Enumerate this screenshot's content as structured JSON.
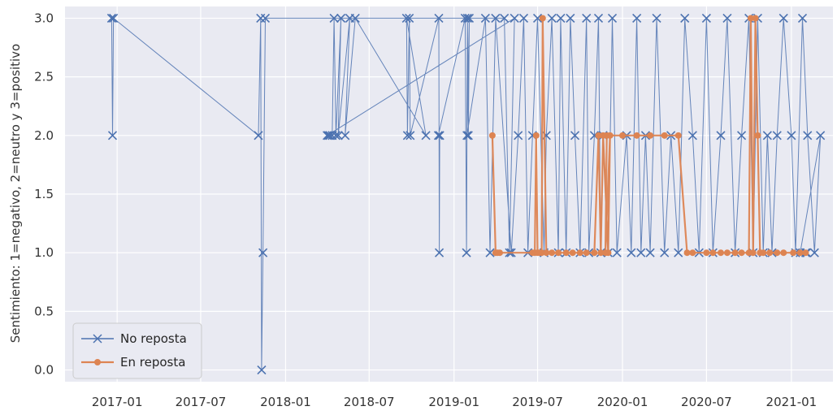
{
  "chart_data": {
    "type": "line",
    "title": "",
    "xlabel": "",
    "ylabel": "Sentimiento: 1=negativo, 2=neutro y 3=positivo",
    "ylim": [
      -0.1,
      3.1
    ],
    "xlim": [
      "2016-09-10",
      "2021-04-01"
    ],
    "grid": true,
    "legend_position": "lower left",
    "x_ticks": [
      "2017-01-01",
      "2017-07-01",
      "2018-01-01",
      "2018-07-01",
      "2019-01-01",
      "2019-07-01",
      "2020-01-01",
      "2020-07-01",
      "2021-01-01"
    ],
    "x_tick_labels": [
      "2017-01",
      "2017-07",
      "2018-01",
      "2018-07",
      "2019-01",
      "2019-07",
      "2020-01",
      "2020-07",
      "2021-01"
    ],
    "y_ticks": [
      0.0,
      0.5,
      1.0,
      1.5,
      2.0,
      2.5,
      3.0
    ],
    "y_tick_labels": [
      "0.0",
      "0.5",
      "1.0",
      "1.5",
      "2.0",
      "2.5",
      "3.0"
    ],
    "colors": {
      "background": "#e9eaf2",
      "grid": "#ffffff",
      "no_reposta": "#4c72b0",
      "en_reposta": "#dd8452"
    },
    "series": [
      {
        "name": "No reposta",
        "color": "#4c72b0",
        "marker": "x",
        "x": [
          "2016-12-20",
          "2016-12-22",
          "2016-12-24",
          "2017-11-03",
          "2017-11-08",
          "2017-11-10",
          "2017-11-13",
          "2017-11-18",
          "2019-04-20",
          "2019-05-01",
          "2019-05-12",
          "2018-04-01",
          "2018-04-04",
          "2018-04-07",
          "2018-04-12",
          "2018-04-16",
          "2018-04-20",
          "2018-05-01",
          "2018-04-25",
          "2018-05-20",
          "2018-05-10",
          "2018-06-01",
          "2018-11-01",
          "2018-09-20",
          "2018-09-22",
          "2018-09-26",
          "2018-09-28",
          "2018-11-29",
          "2018-11-30",
          "2018-12-01",
          "2018-11-28",
          "2019-01-25",
          "2019-01-28",
          "2019-01-30",
          "2019-02-01",
          "2019-02-03",
          "2019-01-29",
          "2019-03-10",
          "2019-03-20",
          "2019-04-01",
          "2019-05-05",
          "2019-05-20",
          "2019-06-01",
          "2019-06-10",
          "2019-06-20",
          "2019-07-01",
          "2019-07-15",
          "2019-07-20",
          "2019-08-01",
          "2019-08-15",
          "2019-08-20",
          "2019-09-01",
          "2019-09-10",
          "2019-09-20",
          "2019-10-01",
          "2019-10-15",
          "2019-10-20",
          "2019-11-01",
          "2019-11-10",
          "2019-11-15",
          "2019-11-20",
          "2019-12-01",
          "2019-12-10",
          "2019-12-20",
          "2020-01-10",
          "2020-01-20",
          "2020-02-01",
          "2020-02-10",
          "2020-02-20",
          "2020-03-01",
          "2020-03-15",
          "2020-04-01",
          "2020-04-15",
          "2020-05-01",
          "2020-05-15",
          "2020-06-01",
          "2020-06-15",
          "2020-07-01",
          "2020-07-15",
          "2020-08-01",
          "2020-08-15",
          "2020-09-01",
          "2020-09-15",
          "2020-10-01",
          "2020-10-10",
          "2020-10-20",
          "2020-11-01",
          "2020-11-10",
          "2020-11-20",
          "2020-12-01",
          "2020-12-15",
          "2021-01-01",
          "2021-01-10",
          "2021-01-25",
          "2021-02-05",
          "2021-02-20",
          "2021-03-05",
          "2021-01-20",
          "2021-02-01",
          "2021-02-03"
        ],
        "values": [
          3,
          2,
          3,
          2,
          3,
          0,
          1,
          3,
          3,
          1,
          3,
          2,
          2,
          2,
          2,
          3,
          2,
          3,
          2,
          3,
          2,
          3,
          2,
          3,
          2,
          3,
          2,
          3,
          1,
          2,
          2,
          3,
          1,
          3,
          2,
          3,
          2,
          3,
          1,
          3,
          1,
          2,
          3,
          1,
          2,
          3,
          1,
          2,
          3,
          1,
          3,
          1,
          3,
          2,
          1,
          3,
          1,
          2,
          3,
          1,
          2,
          1,
          3,
          1,
          2,
          1,
          3,
          1,
          2,
          1,
          3,
          1,
          2,
          1,
          3,
          2,
          1,
          3,
          1,
          2,
          3,
          1,
          2,
          3,
          1,
          3,
          1,
          2,
          1,
          2,
          3,
          2,
          1,
          3,
          2,
          1,
          2,
          1,
          1,
          1
        ]
      },
      {
        "name": "En reposta",
        "color": "#dd8452",
        "marker": "o",
        "x": [
          "2019-03-25",
          "2019-04-01",
          "2019-04-05",
          "2019-04-10",
          "2019-06-20",
          "2019-06-25",
          "2019-06-28",
          "2019-07-01",
          "2019-07-05",
          "2019-07-10",
          "2019-07-12",
          "2019-07-20",
          "2019-08-01",
          "2019-08-15",
          "2019-09-01",
          "2019-09-15",
          "2019-10-01",
          "2019-10-15",
          "2019-11-01",
          "2019-11-10",
          "2019-11-15",
          "2019-11-20",
          "2019-12-01",
          "2019-12-05",
          "2019-11-25",
          "2019-11-28",
          "2020-01-01",
          "2020-02-01",
          "2020-03-01",
          "2020-04-01",
          "2020-05-01",
          "2020-05-20",
          "2020-06-01",
          "2020-07-01",
          "2020-07-15",
          "2020-08-01",
          "2020-08-15",
          "2020-09-01",
          "2020-09-15",
          "2020-10-01",
          "2020-10-05",
          "2020-10-10",
          "2020-10-15",
          "2020-10-20",
          "2020-10-25",
          "2020-11-01",
          "2020-11-15",
          "2020-12-01",
          "2020-12-15",
          "2021-01-05",
          "2021-01-20",
          "2021-02-01"
        ],
        "values": [
          2,
          1,
          1,
          1,
          1,
          1,
          2,
          1,
          1,
          1,
          3,
          1,
          1,
          1,
          1,
          1,
          1,
          1,
          1,
          2,
          1,
          2,
          1,
          2,
          1,
          2,
          2,
          2,
          2,
          2,
          2,
          1,
          1,
          1,
          1,
          1,
          1,
          1,
          1,
          1,
          3,
          1,
          3,
          2,
          1,
          1,
          1,
          1,
          1,
          1,
          1,
          1
        ]
      }
    ]
  }
}
